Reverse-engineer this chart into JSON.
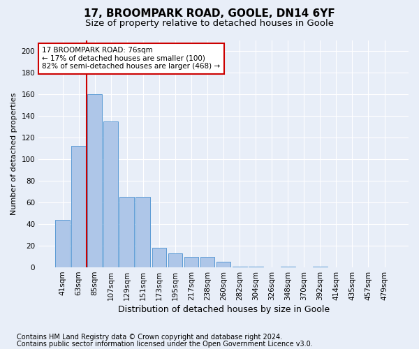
{
  "title1": "17, BROOMPARK ROAD, GOOLE, DN14 6YF",
  "title2": "Size of property relative to detached houses in Goole",
  "xlabel": "Distribution of detached houses by size in Goole",
  "ylabel": "Number of detached properties",
  "categories": [
    "41sqm",
    "63sqm",
    "85sqm",
    "107sqm",
    "129sqm",
    "151sqm",
    "173sqm",
    "195sqm",
    "217sqm",
    "238sqm",
    "260sqm",
    "282sqm",
    "304sqm",
    "326sqm",
    "348sqm",
    "370sqm",
    "392sqm",
    "414sqm",
    "435sqm",
    "457sqm",
    "479sqm"
  ],
  "values": [
    44,
    112,
    160,
    135,
    65,
    65,
    18,
    13,
    10,
    10,
    5,
    1,
    1,
    0,
    1,
    0,
    1,
    0,
    0,
    0,
    0
  ],
  "bar_color": "#aec6e8",
  "bar_edge_color": "#5b9bd5",
  "annotation_text": "17 BROOMPARK ROAD: 76sqm\n← 17% of detached houses are smaller (100)\n82% of semi-detached houses are larger (468) →",
  "annotation_box_color": "#ffffff",
  "annotation_box_edge": "#cc0000",
  "vline_color": "#cc0000",
  "vline_x_index": 1.5,
  "background_color": "#e8eef8",
  "grid_color": "#ffffff",
  "ylim": [
    0,
    210
  ],
  "yticks": [
    0,
    20,
    40,
    60,
    80,
    100,
    120,
    140,
    160,
    180,
    200
  ],
  "footer1": "Contains HM Land Registry data © Crown copyright and database right 2024.",
  "footer2": "Contains public sector information licensed under the Open Government Licence v3.0.",
  "title1_fontsize": 11,
  "title2_fontsize": 9.5,
  "xlabel_fontsize": 9,
  "ylabel_fontsize": 8,
  "tick_fontsize": 7.5,
  "annotation_fontsize": 7.5,
  "footer_fontsize": 7
}
